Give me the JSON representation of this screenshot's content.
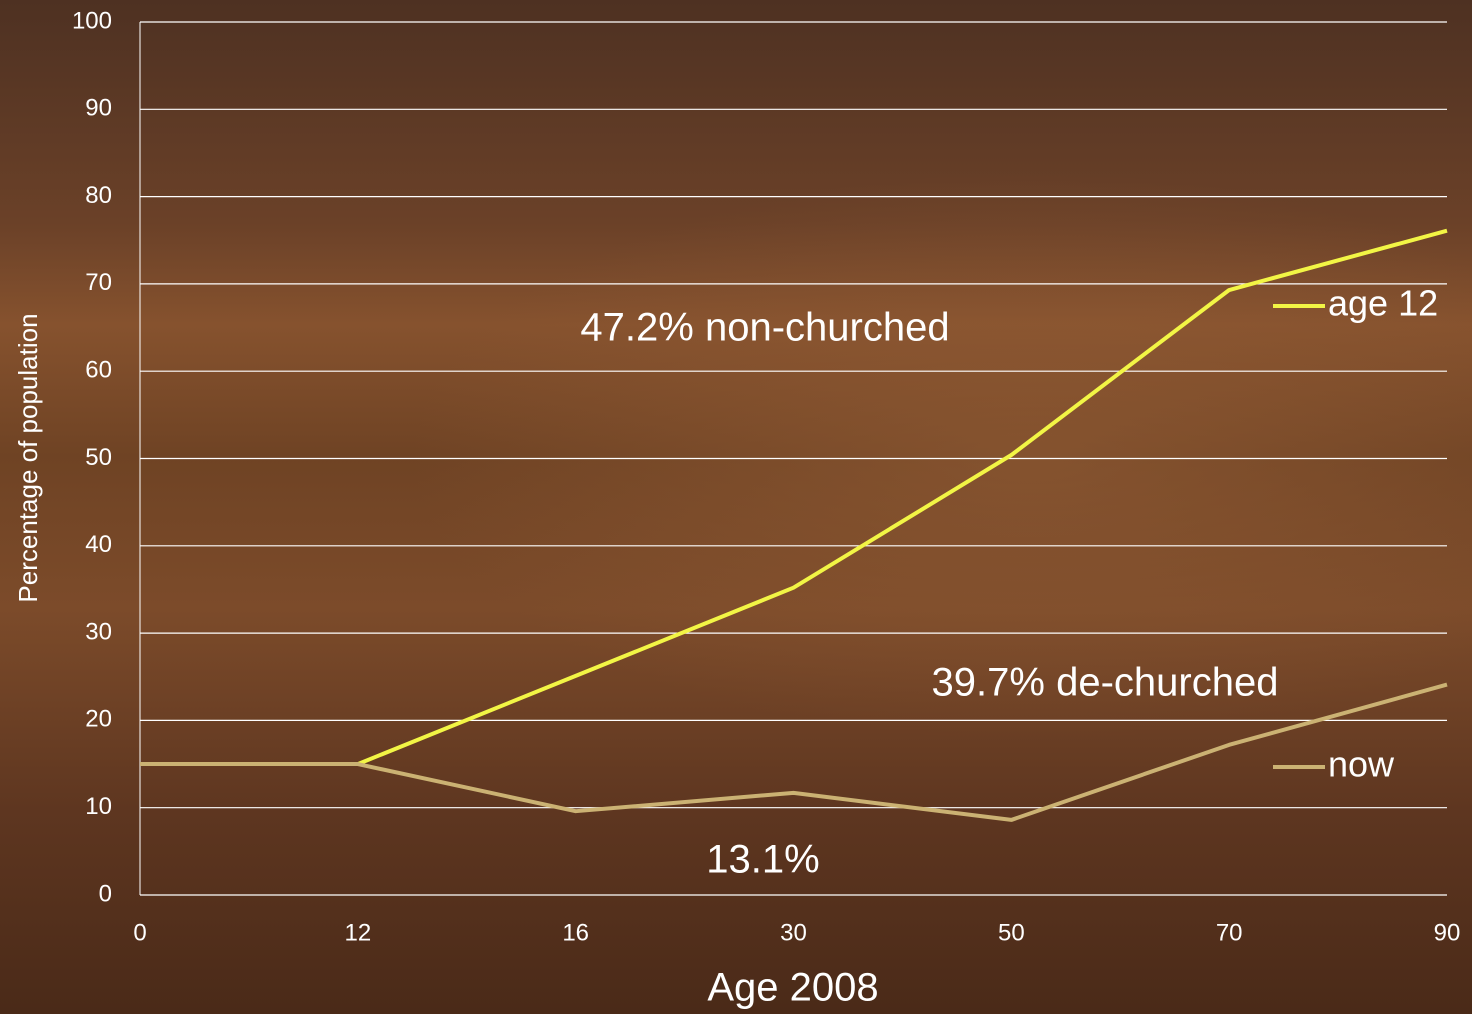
{
  "chart_data": {
    "type": "line",
    "x_label": "Age 2008",
    "y_label": "Percentage of population",
    "categories": [
      "0",
      "12",
      "16",
      "30",
      "50",
      "70",
      "90"
    ],
    "series": [
      {
        "name": "age 12",
        "color": "#f2f545",
        "values": [
          15,
          15,
          25.1,
          35.2,
          50.4,
          69.3,
          76.1
        ]
      },
      {
        "name": "now",
        "color": "#cbb273",
        "values": [
          15,
          15,
          9.6,
          11.7,
          8.6,
          17.2,
          24.1
        ]
      }
    ],
    "ylim": [
      0,
      100
    ],
    "yticks": [
      0,
      10,
      20,
      30,
      40,
      50,
      60,
      70,
      80,
      90,
      100
    ],
    "grid": true,
    "legend": "right",
    "annotations": [
      "47.2% non-churched",
      "39.7% de-churched",
      "13.1%"
    ]
  }
}
